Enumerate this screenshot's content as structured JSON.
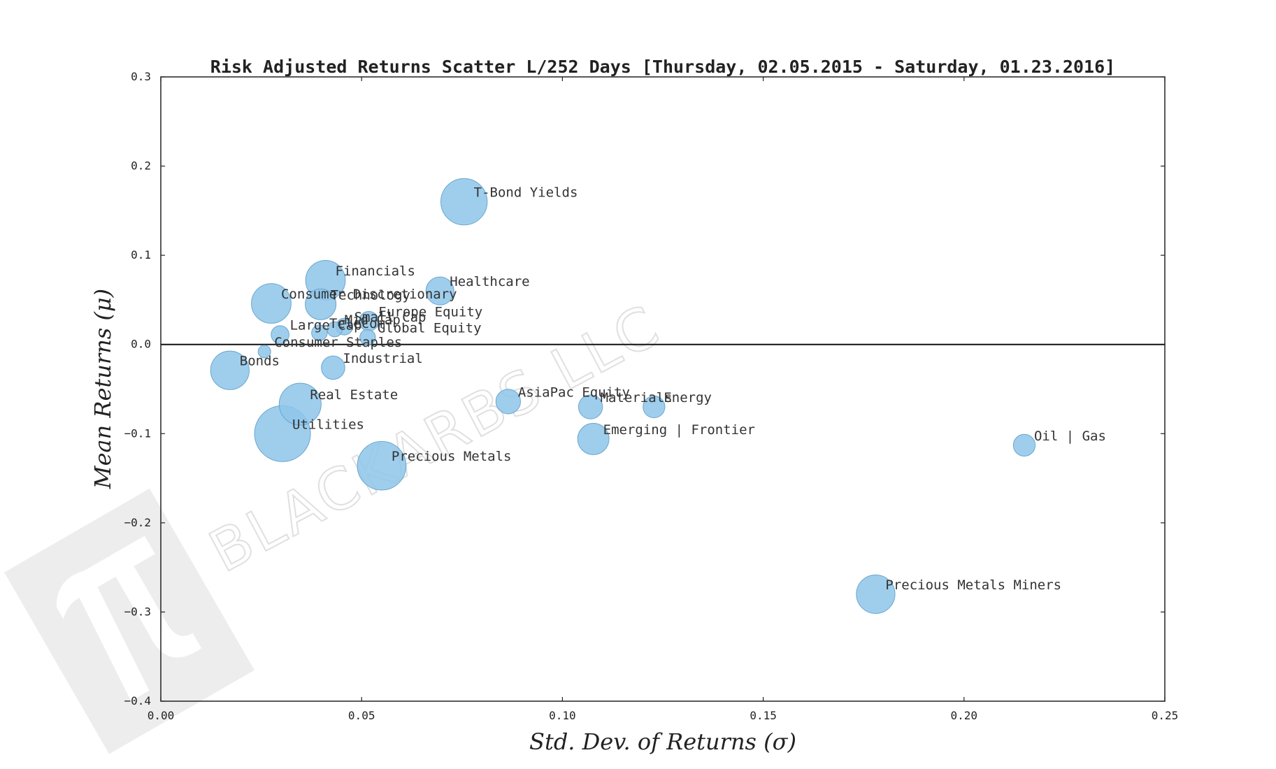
{
  "colors": {
    "marker_fill": "#8ec5ea",
    "marker_edge": "#6aa6cf",
    "axis": "#222222",
    "zero_line": "#111111",
    "watermark": "#e0e0e0"
  },
  "watermark": {
    "text": "BLACKARBS LLC",
    "logo_icon": "pi-logo-icon"
  },
  "chart_data": {
    "type": "scatter",
    "title": "Risk Adjusted Returns Scatter L/252 Days [Thursday, 02.05.2015 - Saturday, 01.23.2016]",
    "xlabel": "Std.  Dev.  of  Returns     (σ)",
    "ylabel": "Mean  Returns     (μ)",
    "xlim": [
      0.0,
      0.25
    ],
    "ylim": [
      -0.4,
      0.3
    ],
    "xticks": [
      "0.00",
      "0.05",
      "0.10",
      "0.15",
      "0.20",
      "0.25"
    ],
    "yticks": [
      "0.3",
      "0.2",
      "0.1",
      "0.0",
      "−0.1",
      "−0.2",
      "−0.3",
      "−0.4"
    ],
    "xtick_values": [
      0.0,
      0.05,
      0.1,
      0.15,
      0.2,
      0.25
    ],
    "ytick_values": [
      0.3,
      0.2,
      0.1,
      0.0,
      -0.1,
      -0.2,
      -0.3,
      -0.4
    ],
    "hline": 0.0,
    "points": [
      {
        "label": "T-Bond Yields",
        "x": 0.0755,
        "y": 0.16,
        "size": 0.83
      },
      {
        "label": "Financials",
        "x": 0.041,
        "y": 0.072,
        "size": 0.71
      },
      {
        "label": "Healthcare",
        "x": 0.0695,
        "y": 0.06,
        "size": 0.5
      },
      {
        "label": "Consumer Discretionary",
        "x": 0.0275,
        "y": 0.046,
        "size": 0.71
      },
      {
        "label": "Technology",
        "x": 0.0398,
        "y": 0.045,
        "size": 0.55
      },
      {
        "label": "Europe Equity",
        "x": 0.0518,
        "y": 0.026,
        "size": 0.35
      },
      {
        "label": "Small Cap",
        "x": 0.0457,
        "y": 0.02,
        "size": 0.3
      },
      {
        "label": "Mid Cap",
        "x": 0.0433,
        "y": 0.017,
        "size": 0.27
      },
      {
        "label": "Large Cap",
        "x": 0.0297,
        "y": 0.011,
        "size": 0.32
      },
      {
        "label": "Telecom",
        "x": 0.0395,
        "y": 0.013,
        "size": 0.28
      },
      {
        "label": "Global Equity",
        "x": 0.0515,
        "y": 0.008,
        "size": 0.28
      },
      {
        "label": "Consumer Staples",
        "x": 0.0258,
        "y": -0.008,
        "size": 0.22
      },
      {
        "label": "Bonds",
        "x": 0.0172,
        "y": -0.029,
        "size": 0.69
      },
      {
        "label": "Industrial",
        "x": 0.0429,
        "y": -0.026,
        "size": 0.42
      },
      {
        "label": "Real Estate",
        "x": 0.0347,
        "y": -0.067,
        "size": 0.75
      },
      {
        "label": "AsiaPac Equity",
        "x": 0.0865,
        "y": -0.064,
        "size": 0.44
      },
      {
        "label": "Materials",
        "x": 0.107,
        "y": -0.07,
        "size": 0.43
      },
      {
        "label": "Energy",
        "x": 0.1228,
        "y": -0.07,
        "size": 0.39
      },
      {
        "label": "Utilities",
        "x": 0.0303,
        "y": -0.1,
        "size": 1.0
      },
      {
        "label": "Emerging | Frontier",
        "x": 0.1077,
        "y": -0.106,
        "size": 0.56
      },
      {
        "label": "Oil | Gas",
        "x": 0.215,
        "y": -0.113,
        "size": 0.39
      },
      {
        "label": "Precious Metals",
        "x": 0.055,
        "y": -0.136,
        "size": 0.87
      },
      {
        "label": "Precious Metals Miners",
        "x": 0.178,
        "y": -0.28,
        "size": 0.69
      }
    ]
  }
}
